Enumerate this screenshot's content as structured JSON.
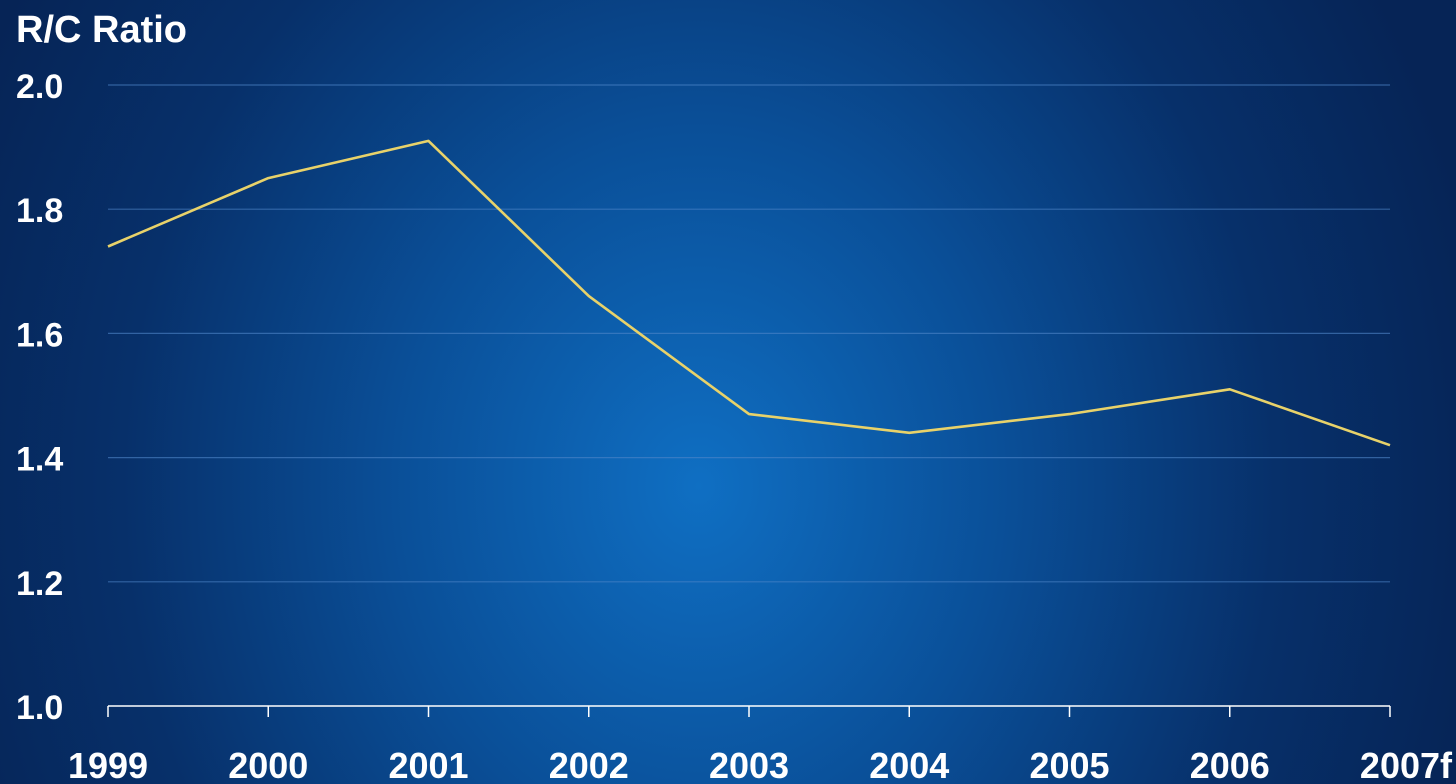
{
  "chart_data": {
    "type": "line",
    "title": "",
    "xlabel": "",
    "ylabel": "R/C Ratio",
    "categories": [
      "1999",
      "2000",
      "2001",
      "2002",
      "2003",
      "2004",
      "2005",
      "2006",
      "2007f"
    ],
    "series": [
      {
        "values": [
          1.74,
          1.85,
          1.91,
          1.66,
          1.47,
          1.44,
          1.47,
          1.51,
          1.42
        ],
        "color": "#e8d26a"
      }
    ],
    "yticks": [
      "1.0",
      "1.2",
      "1.4",
      "1.6",
      "1.8",
      "2.0"
    ],
    "ylim": [
      1.0,
      2.0
    ],
    "grid": true,
    "legend": "none"
  },
  "colors": {
    "background": "#0a4f98",
    "text": "#ffffff",
    "gridline": "#4f86c9",
    "line": "#e8d26a"
  }
}
